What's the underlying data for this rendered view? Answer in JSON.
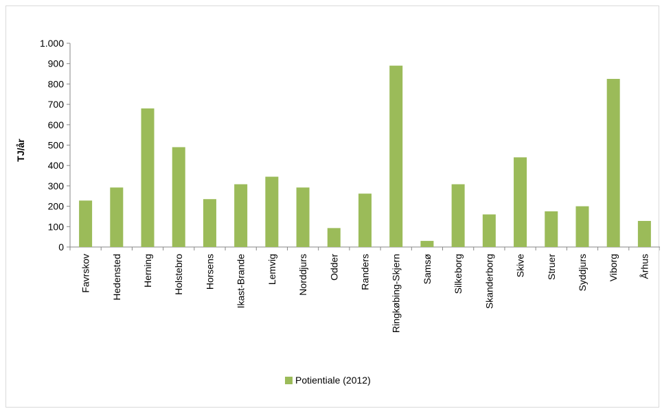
{
  "chart_data": {
    "type": "bar",
    "ylabel": "TJ/år",
    "xlabel": "",
    "title": "",
    "ylim": [
      0,
      1000
    ],
    "yticks": [
      0,
      100,
      200,
      300,
      400,
      500,
      600,
      700,
      800,
      900,
      1000
    ],
    "ytick_labels": [
      "0",
      "100",
      "200",
      "300",
      "400",
      "500",
      "600",
      "700",
      "800",
      "900",
      "1.000"
    ],
    "grid": false,
    "legend_position": "bottom",
    "categories": [
      "Favrskov",
      "Hedensted",
      "Herning",
      "Holstebro",
      "Horsens",
      "Ikast-Brande",
      "Lemvig",
      "Norddjurs",
      "Odder",
      "Randers",
      "Ringkøbing-Skjern",
      "Samsø",
      "Silkeborg",
      "Skanderborg",
      "Skive",
      "Struer",
      "Syddjurs",
      "Viborg",
      "Århus"
    ],
    "series": [
      {
        "name": "Potientiale (2012)",
        "color": "#9bbb59",
        "values": [
          228,
          292,
          680,
          490,
          235,
          308,
          345,
          292,
          93,
          262,
          890,
          30,
          308,
          160,
          440,
          175,
          200,
          825,
          128
        ]
      }
    ]
  }
}
